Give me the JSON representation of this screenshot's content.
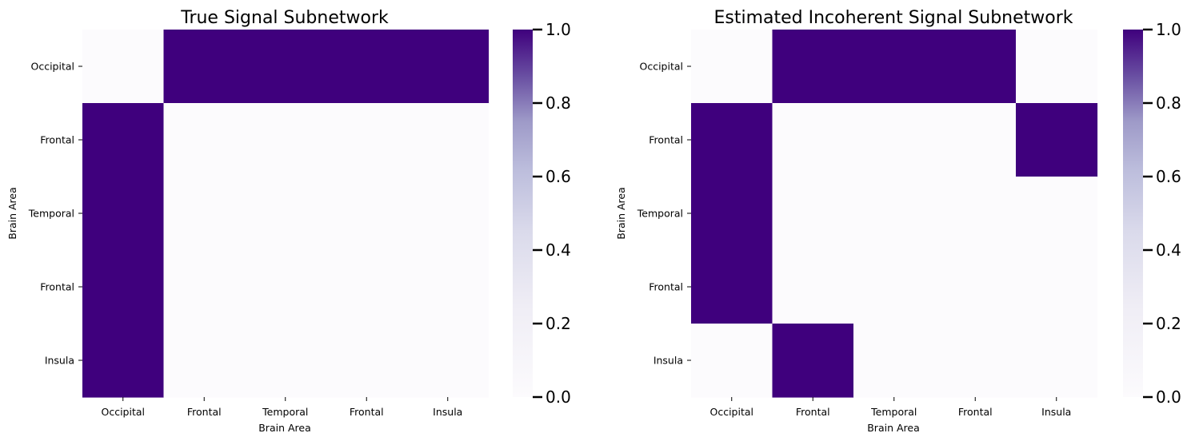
{
  "colors": {
    "high": "#3f007d",
    "low": "#fcfbfd",
    "mid": "#807dba",
    "light": "#dadaeb"
  },
  "chart_data": [
    {
      "type": "heatmap",
      "title": "True Signal Subnetwork",
      "xlabel": "Brain Area",
      "ylabel": "Brain Area",
      "x_categories": [
        "Occipital",
        "Frontal",
        "Temporal",
        "Frontal",
        "Insula"
      ],
      "y_categories": [
        "Occipital",
        "Frontal",
        "Temporal",
        "Frontal",
        "Insula"
      ],
      "values": [
        [
          0,
          1,
          1,
          1,
          1
        ],
        [
          1,
          0,
          0,
          0,
          0
        ],
        [
          1,
          0,
          0,
          0,
          0
        ],
        [
          1,
          0,
          0,
          0,
          0
        ],
        [
          1,
          0,
          0,
          0,
          0
        ]
      ],
      "colorbar": {
        "range": [
          0,
          1
        ],
        "ticks": [
          "0.0",
          "0.2",
          "0.4",
          "0.6",
          "0.8",
          "1.0"
        ],
        "colormap": "Purples"
      }
    },
    {
      "type": "heatmap",
      "title": "Estimated Incoherent Signal Subnetwork",
      "xlabel": "Brain Area",
      "ylabel": "Brain Area",
      "x_categories": [
        "Occipital",
        "Frontal",
        "Temporal",
        "Frontal",
        "Insula"
      ],
      "y_categories": [
        "Occipital",
        "Frontal",
        "Temporal",
        "Frontal",
        "Insula"
      ],
      "values": [
        [
          0,
          1,
          1,
          1,
          0
        ],
        [
          1,
          0,
          0,
          0,
          1
        ],
        [
          1,
          0,
          0,
          0,
          0
        ],
        [
          1,
          0,
          0,
          0,
          0
        ],
        [
          0,
          1,
          0,
          0,
          0
        ]
      ],
      "colorbar": {
        "range": [
          0,
          1
        ],
        "ticks": [
          "0.0",
          "0.2",
          "0.4",
          "0.6",
          "0.8",
          "1.0"
        ],
        "colormap": "Purples"
      }
    }
  ]
}
